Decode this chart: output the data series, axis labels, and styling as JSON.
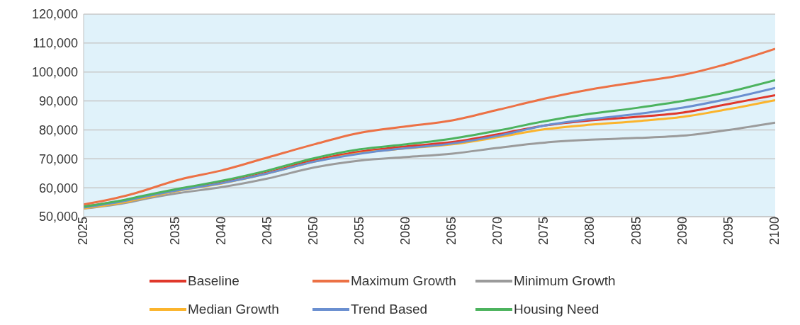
{
  "chart_data": {
    "type": "line",
    "x": [
      2025,
      2030,
      2031,
      2035,
      2040,
      2045,
      2050,
      2055,
      2060,
      2065,
      2070,
      2075,
      2080,
      2085,
      2090,
      2095,
      2100
    ],
    "xlim": [
      2025,
      2100
    ],
    "xticks": [
      2025,
      2030,
      2035,
      2040,
      2045,
      2050,
      2055,
      2060,
      2065,
      2070,
      2075,
      2080,
      2085,
      2090,
      2095,
      2100
    ],
    "ylim": [
      50000,
      120000
    ],
    "yticks": [
      {
        "value": 50000,
        "label": "50,000"
      },
      {
        "value": 60000,
        "label": "60,000"
      },
      {
        "value": 70000,
        "label": "70,000"
      },
      {
        "value": 80000,
        "label": "80,000"
      },
      {
        "value": 90000,
        "label": "90,000"
      },
      {
        "value": 100000,
        "label": "100,000"
      },
      {
        "value": 110000,
        "label": "110,000"
      },
      {
        "value": 120000,
        "label": "120,000"
      }
    ],
    "grid": "y",
    "legend": "bottom",
    "marker": "none",
    "line_style": "solid",
    "series": [
      {
        "name": "Baseline",
        "color": "#e0382b",
        "values": [
          53500,
          56000,
          56700,
          59000,
          61800,
          65300,
          69500,
          72500,
          74300,
          75800,
          78500,
          81500,
          83300,
          84500,
          86000,
          89000,
          92000
        ]
      },
      {
        "name": "Maximum Growth",
        "color": "#ec7145",
        "values": [
          54200,
          57600,
          58500,
          62500,
          66000,
          70500,
          75000,
          79000,
          81200,
          83300,
          87000,
          90800,
          94000,
          96500,
          99000,
          103000,
          108000
        ]
      },
      {
        "name": "Minimum Growth",
        "color": "#9b9b9b",
        "values": [
          52800,
          55000,
          55700,
          58000,
          60200,
          63200,
          67000,
          69400,
          70600,
          71800,
          73800,
          75600,
          76600,
          77200,
          78000,
          80000,
          82500
        ]
      },
      {
        "name": "Median Growth",
        "color": "#fbb42c",
        "values": [
          52900,
          55400,
          56100,
          58800,
          61500,
          65000,
          69000,
          72000,
          73600,
          75000,
          77500,
          80200,
          81800,
          83000,
          84500,
          87200,
          90300
        ]
      },
      {
        "name": "Trend Based",
        "color": "#6a8fd0",
        "values": [
          53200,
          55800,
          56500,
          59000,
          61600,
          65000,
          69000,
          71800,
          73700,
          75300,
          78000,
          81500,
          83700,
          85500,
          87700,
          90800,
          94500
        ]
      },
      {
        "name": "Housing Need",
        "color": "#4cb35e",
        "values": [
          53500,
          56200,
          56900,
          59500,
          62400,
          66000,
          70200,
          73300,
          75000,
          77000,
          79800,
          83000,
          85600,
          87600,
          90000,
          93200,
          97200
        ]
      }
    ]
  }
}
